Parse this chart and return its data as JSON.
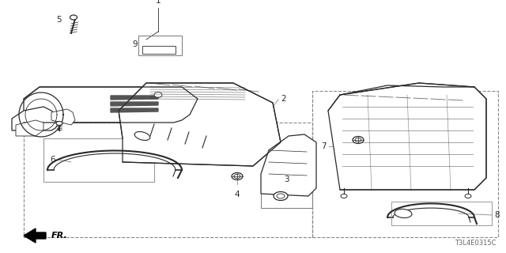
{
  "bg_color": "#ffffff",
  "line_color": "#2a2a2a",
  "gray_color": "#888888",
  "diagram_code": "T3L4E0315C",
  "label_fontsize": 7.5,
  "code_fontsize": 6
}
